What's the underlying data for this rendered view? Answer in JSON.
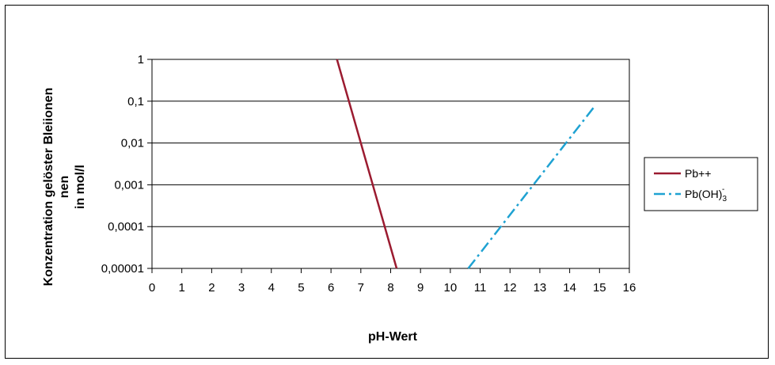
{
  "chart_data": {
    "type": "line",
    "title": "",
    "xlabel": "pH-Wert",
    "ylabel_lines": [
      "Konzentration gelöster Bleiionen",
      "nen",
      "in mol/l"
    ],
    "x_ticks": [
      "0",
      "1",
      "2",
      "3",
      "4",
      "5",
      "6",
      "7",
      "8",
      "9",
      "10",
      "11",
      "12",
      "13",
      "14",
      "15",
      "16"
    ],
    "xlim": [
      0,
      16
    ],
    "y_scale": "log",
    "y_ticks": [
      "0,00001",
      "0,0001",
      "0,001",
      "0,01",
      "0,1",
      "1"
    ],
    "ylim": [
      1e-05,
      1
    ],
    "grid": "horizontal",
    "legend_position": "right",
    "series": [
      {
        "name": "Pb++",
        "color": "#9b1b30",
        "style": "solid",
        "points": [
          {
            "x": 6.2,
            "y": 1
          },
          {
            "x": 8.2,
            "y": 1e-05
          }
        ]
      },
      {
        "name": "Pb(OH)3-",
        "label_main": "Pb(OH)",
        "label_sub": "3",
        "label_sup": "-",
        "color": "#1fa2d2",
        "style": "dashdot",
        "points": [
          {
            "x": 10.6,
            "y": 1e-05
          },
          {
            "x": 14.8,
            "y": 0.07
          }
        ]
      }
    ]
  }
}
